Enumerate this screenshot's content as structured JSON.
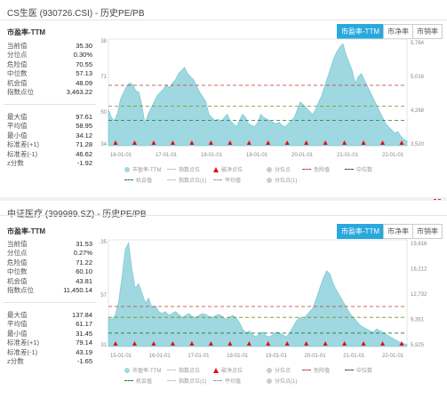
{
  "colors": {
    "accent": "#29a8dd",
    "area": "#9fd8e0",
    "danger": "#c0392b",
    "median": "#7a8f1a",
    "chance": "#1a7a3a",
    "trigger": "#e01010"
  },
  "tabs": [
    "市盈率-TTM",
    "市净率",
    "市销率"
  ],
  "legend": {
    "row1": [
      "市盈率-TTM",
      "指数点位",
      "破净点位",
      "分位点",
      "危险值",
      "中位数"
    ],
    "row2": [
      "机会值",
      "指数点位(1)",
      "平均值",
      "分位点(1)"
    ]
  },
  "panels": [
    {
      "title": "CS生医 (930726.CSI) - 历史PE/PB",
      "metric": "市盈率-TTM",
      "stats1": [
        {
          "label": "当前值",
          "value": "35.30"
        },
        {
          "label": "分位点",
          "value": "0.30%"
        },
        {
          "label": "危险值",
          "value": "70.55"
        },
        {
          "label": "中位数",
          "value": "57.13"
        },
        {
          "label": "机会值",
          "value": "48.09"
        },
        {
          "label": "指数点位",
          "value": "3,463.22"
        }
      ],
      "stats2": [
        {
          "label": "最大值",
          "value": "97.61"
        },
        {
          "label": "平均值",
          "value": "58.95"
        },
        {
          "label": "最小值",
          "value": "34.12"
        },
        {
          "label": "标准差(+1)",
          "value": "71.28"
        },
        {
          "label": "标准差(-1)",
          "value": "46.62"
        },
        {
          "label": "z分数",
          "value": "-1.92"
        }
      ],
      "yleft": [
        "38",
        "71",
        "50",
        "34"
      ],
      "yright": [
        "5,764",
        "5,016",
        "4,268",
        "3,520"
      ],
      "xlabels": [
        "16-01-01",
        "17-01-01",
        "18-01-01",
        "19-01-01",
        "20-01-01",
        "21-01-01",
        "22-01-01"
      ],
      "chart_data": {
        "type": "area",
        "ylim": [
          32,
          100
        ],
        "lines": {
          "danger": 70.55,
          "median": 57.13,
          "chance": 48.09
        },
        "values": [
          55,
          50,
          48,
          53,
          62,
          66,
          70,
          72,
          71,
          67,
          66,
          58,
          46,
          52,
          56,
          60,
          64,
          66,
          68,
          71,
          69,
          72,
          74,
          78,
          80,
          82,
          78,
          76,
          74,
          70,
          66,
          63,
          60,
          52,
          50,
          48,
          49,
          47,
          50,
          52,
          48,
          46,
          44,
          48,
          52,
          50,
          46,
          45,
          44,
          47,
          52,
          50,
          49,
          48,
          47,
          46,
          47,
          45,
          44,
          46,
          48,
          50,
          55,
          60,
          58,
          56,
          54,
          52,
          55,
          60,
          64,
          70,
          76,
          82,
          88,
          92,
          95,
          97,
          90,
          85,
          80,
          72,
          76,
          78,
          74,
          70,
          66,
          62,
          58,
          54,
          50,
          46,
          44,
          42,
          40,
          41,
          38,
          36,
          35
        ]
      }
    },
    {
      "title": "中证医疗 (399989.SZ) - 历史PE/PB",
      "metric": "市盈率-TTM",
      "stats1": [
        {
          "label": "当前值",
          "value": "31.53"
        },
        {
          "label": "分位点",
          "value": "0.27%"
        },
        {
          "label": "危险值",
          "value": "71.22"
        },
        {
          "label": "中位数",
          "value": "60.10"
        },
        {
          "label": "机会值",
          "value": "43.81"
        },
        {
          "label": "指数点位",
          "value": "11,450.14"
        }
      ],
      "stats2": [
        {
          "label": "最大值",
          "value": "137.84"
        },
        {
          "label": "平均值",
          "value": "61.17"
        },
        {
          "label": "最小值",
          "value": "31.45"
        },
        {
          "label": "标准差(+1)",
          "value": "79.14"
        },
        {
          "label": "标准差(-1)",
          "value": "43.19"
        },
        {
          "label": "z分数",
          "value": "-1.65"
        }
      ],
      "yleft": [
        "135",
        "57",
        "31"
      ],
      "yright": [
        "19,616",
        "16,212",
        "12,732",
        "9,351",
        "5,925"
      ],
      "xlabels": [
        "15-01-01",
        "16-01-01",
        "17-01-01",
        "18-01-01",
        "19-01-01",
        "20-01-01",
        "21-01-01",
        "22-01-01"
      ],
      "chart_data": {
        "type": "area",
        "ylim": [
          30,
          140
        ],
        "lines": {
          "danger": 71.22,
          "median": 60.1,
          "chance": 43.81
        },
        "values": [
          60,
          58,
          62,
          75,
          100,
          130,
          137,
          110,
          90,
          95,
          85,
          75,
          80,
          70,
          72,
          66,
          64,
          66,
          62,
          64,
          66,
          63,
          60,
          62,
          64,
          61,
          60,
          62,
          64,
          63,
          61,
          60,
          62,
          63,
          61,
          58,
          60,
          62,
          60,
          55,
          48,
          44,
          46,
          42,
          40,
          43,
          45,
          41,
          40,
          42,
          45,
          44,
          42,
          40,
          44,
          50,
          56,
          60,
          58,
          62,
          66,
          70,
          80,
          90,
          100,
          108,
          105,
          95,
          88,
          82,
          76,
          70,
          64,
          60,
          56,
          52,
          50,
          48,
          46,
          45,
          48,
          46,
          44,
          42,
          40,
          38,
          36,
          34,
          33,
          32
        ]
      }
    }
  ]
}
